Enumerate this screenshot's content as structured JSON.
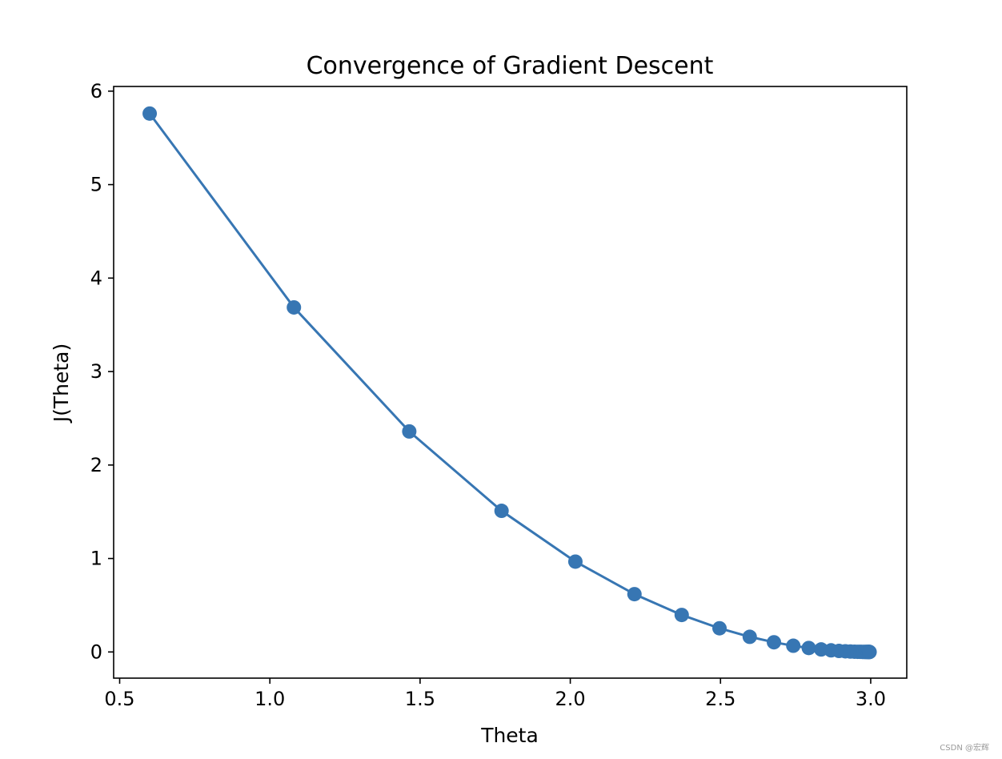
{
  "chart_data": {
    "type": "line",
    "title": "Convergence of Gradient Descent",
    "xlabel": "Theta",
    "ylabel": "J(Theta)",
    "xlim": [
      0.48,
      3.12
    ],
    "ylim": [
      -0.28,
      6.05
    ],
    "xticks": [
      0.5,
      1.0,
      1.5,
      2.0,
      2.5,
      3.0
    ],
    "xtick_labels": [
      "0.5",
      "1.0",
      "1.5",
      "2.0",
      "2.5",
      "3.0"
    ],
    "yticks": [
      0,
      1,
      2,
      3,
      4,
      5,
      6
    ],
    "ytick_labels": [
      "0",
      "1",
      "2",
      "3",
      "4",
      "5",
      "6"
    ],
    "grid": false,
    "marker": "circle",
    "series": [
      {
        "color": "#3776b3",
        "x": [
          0.6,
          1.08,
          1.464,
          1.7712,
          2.017,
          2.2136,
          2.3709,
          2.4967,
          2.5973,
          2.6779,
          2.7423,
          2.7938,
          2.8351,
          2.8681,
          2.8945,
          2.9156,
          2.9324,
          2.946,
          2.9568,
          2.9654,
          2.9723,
          2.9779,
          2.9823,
          2.9858,
          2.9887,
          2.9909,
          2.9927,
          2.9942,
          2.9954,
          2.9963
        ],
        "y": [
          5.76,
          3.6864,
          2.3593,
          1.5099,
          0.9664,
          0.6185,
          0.3958,
          0.2533,
          0.1621,
          0.1038,
          0.0664,
          0.0425,
          0.0272,
          0.0174,
          0.0111,
          0.0071,
          0.0046,
          0.0029,
          0.0019,
          0.0012,
          0.0008,
          0.0005,
          0.0003,
          0.0002,
          0.0001,
          0.0001,
          0.0001,
          0.0,
          0.0,
          0.0
        ]
      }
    ]
  },
  "watermark": "CSDN @宏辉"
}
